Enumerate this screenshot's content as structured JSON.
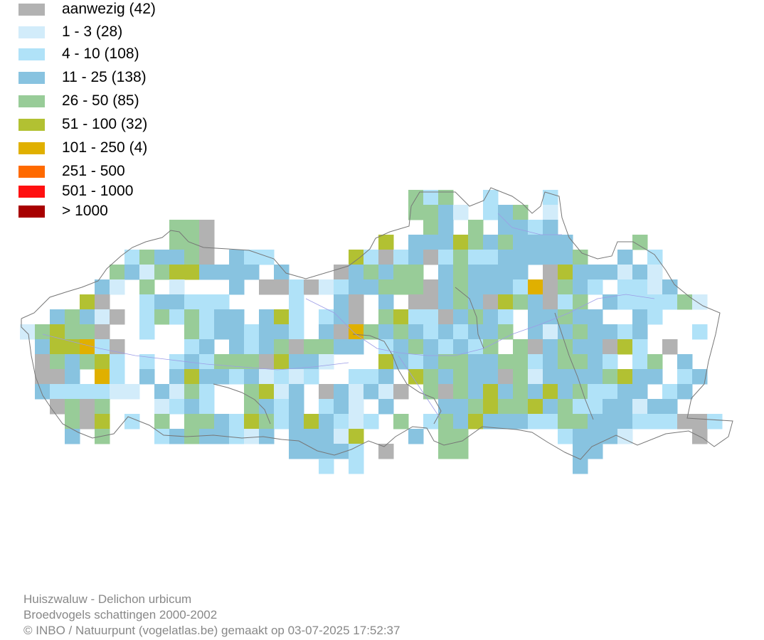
{
  "legend": {
    "items": [
      {
        "label": "aanwezig (42)",
        "color": "#b2b2b2"
      },
      {
        "label": "1 - 3 (28)",
        "color": "#d2ecfa"
      },
      {
        "label": "4 - 10 (108)",
        "color": "#b0e2f8"
      },
      {
        "label": "11 - 25 (138)",
        "color": "#88c3e0"
      },
      {
        "label": "26 - 50 (85)",
        "color": "#98cc98"
      },
      {
        "label": "51 - 100 (32)",
        "color": "#b2c132"
      },
      {
        "label": "101 - 250 (4)",
        "color": "#e0b000"
      },
      {
        "label": "251 - 500",
        "color": "#ff6a00"
      },
      {
        "label": "501 - 1000",
        "color": "#ff1010"
      },
      {
        "label": "> 1000",
        "color": "#a80000"
      }
    ]
  },
  "map": {
    "border_color": "#777777",
    "river_color": "#9c9ce6"
  },
  "footer": {
    "line1": "Huiszwaluw - Delichon urbicum",
    "line2": "Broedvogels schattingen 2000-2002",
    "line3": "© INBO / Natuurpunt (vogelatlas.be) gemaakt op 03-07-2025 17:52:37"
  }
}
